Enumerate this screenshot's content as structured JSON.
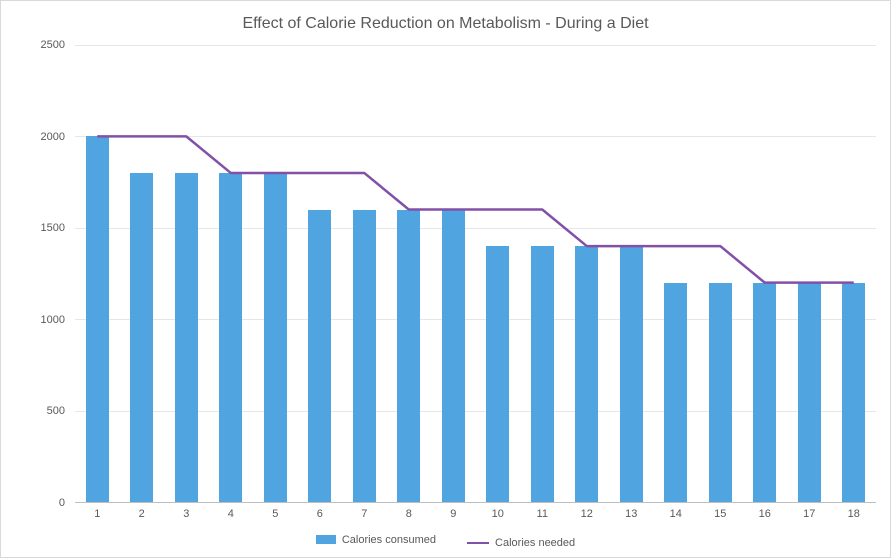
{
  "chart": {
    "type": "bar+line",
    "title": "Effect of Calorie Reduction on Metabolism - During a Diet",
    "title_fontsize": 16,
    "title_color": "#595959",
    "background_color": "#ffffff",
    "border_color": "#d9d9d9",
    "categories": [
      "1",
      "2",
      "3",
      "4",
      "5",
      "6",
      "7",
      "8",
      "9",
      "10",
      "11",
      "12",
      "13",
      "14",
      "15",
      "16",
      "17",
      "18"
    ],
    "bar_series": {
      "name": "Calories consumed",
      "color": "#50a5e0",
      "values": [
        2000,
        1800,
        1800,
        1800,
        1800,
        1600,
        1600,
        1600,
        1600,
        1400,
        1400,
        1400,
        1400,
        1200,
        1200,
        1200,
        1200,
        1200
      ]
    },
    "line_series": {
      "name": "Calories needed",
      "color": "#8350a8",
      "line_width": 2.5,
      "values": [
        2000,
        2000,
        2000,
        1800,
        1800,
        1800,
        1800,
        1600,
        1600,
        1600,
        1600,
        1400,
        1400,
        1400,
        1400,
        1200,
        1200,
        1200
      ]
    },
    "y_axis": {
      "min": 0,
      "max": 2500,
      "tick_step": 500,
      "label_fontsize": 11,
      "label_color": "#595959",
      "grid_color": "#e6e6e6",
      "axis_line_color": "#bfbfbf"
    },
    "x_axis": {
      "label_fontsize": 11,
      "label_color": "#595959"
    },
    "bar_width_ratio": 0.52,
    "legend": {
      "position": "bottom",
      "fontsize": 11,
      "items": [
        "Calories consumed",
        "Calories needed"
      ]
    }
  }
}
